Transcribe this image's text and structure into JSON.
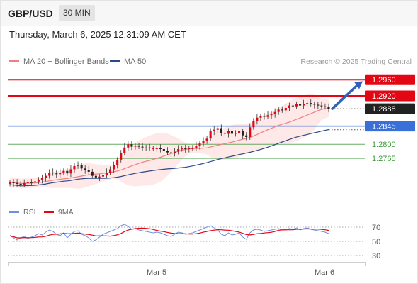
{
  "header": {
    "symbol": "GBP/USD",
    "interval": "30 MIN",
    "datetime": "Thursday, March 6, 2025 12:31:09 AM CET"
  },
  "legend": {
    "ma20": "MA 20 + Bollinger Bands",
    "ma50": "MA 50",
    "credit": "Research © 2025 Trading Central",
    "rsi": "RSI",
    "ma9": "9MA"
  },
  "colors": {
    "bull": "#e30613",
    "bear": "#222222",
    "ma20": "#f08080",
    "ma50": "#2c4a8a",
    "band": "#fde0e0",
    "resistance": "#e30613",
    "pivot": "#3a6fd8",
    "support": "#3f9a3f",
    "rsi": "#6f8fe0",
    "rsi_ma": "#e30613",
    "arrow": "#2e63b8"
  },
  "chart_data": [
    {
      "type": "candlestick",
      "ylim": [
        1.2665,
        1.2985
      ],
      "x_ticks": [
        "Mar 5",
        "Mar 6"
      ],
      "levels": [
        {
          "value": 1.296,
          "label": "1.2960",
          "kind": "resistance"
        },
        {
          "value": 1.292,
          "label": "1.2920",
          "kind": "resistance"
        },
        {
          "value": 1.2888,
          "label": "1.2888",
          "kind": "last"
        },
        {
          "value": 1.2845,
          "label": "1.2845",
          "kind": "pivot"
        },
        {
          "value": 1.28,
          "label": "1.2800",
          "kind": "support"
        },
        {
          "value": 1.2765,
          "label": "1.2765",
          "kind": "support"
        }
      ],
      "closes": [
        1.2706,
        1.2704,
        1.2702,
        1.27,
        1.2704,
        1.2706,
        1.2705,
        1.2708,
        1.2712,
        1.2716,
        1.2722,
        1.273,
        1.2728,
        1.2726,
        1.273,
        1.2734,
        1.2728,
        1.2738,
        1.2746,
        1.2748,
        1.274,
        1.2736,
        1.2732,
        1.2722,
        1.2718,
        1.272,
        1.2724,
        1.273,
        1.2738,
        1.2748,
        1.2762,
        1.2778,
        1.2792,
        1.28,
        1.2794,
        1.2796,
        1.2794,
        1.2792,
        1.2792,
        1.279,
        1.279,
        1.279,
        1.2788,
        1.2784,
        1.278,
        1.2778,
        1.2782,
        1.2788,
        1.279,
        1.2788,
        1.279,
        1.279,
        1.2796,
        1.2802,
        1.2808,
        1.2814,
        1.2832,
        1.2836,
        1.284,
        1.2828,
        1.2826,
        1.2832,
        1.2826,
        1.2828,
        1.2832,
        1.2822,
        1.2818,
        1.2842,
        1.2858,
        1.2866,
        1.287,
        1.2868,
        1.2872,
        1.2874,
        1.288,
        1.2886,
        1.2884,
        1.289,
        1.2896,
        1.2894,
        1.29,
        1.2896,
        1.29,
        1.2902,
        1.29,
        1.2898,
        1.2896,
        1.2894,
        1.2892,
        1.2888
      ]
    },
    {
      "type": "line",
      "name": "RSI",
      "ylim": [
        25,
        80
      ],
      "y_ticks": [
        70,
        50,
        30
      ],
      "values": [
        58,
        55,
        52,
        55,
        57,
        54,
        56,
        58,
        61,
        59,
        63,
        66,
        64,
        60,
        58,
        62,
        55,
        60,
        64,
        65,
        60,
        58,
        55,
        50,
        52,
        56,
        60,
        62,
        64,
        66,
        68,
        72,
        74,
        71,
        67,
        68,
        66,
        65,
        64,
        63,
        62,
        63,
        62,
        60,
        58,
        57,
        60,
        63,
        62,
        60,
        61,
        62,
        64,
        66,
        68,
        70,
        72,
        69,
        66,
        60,
        58,
        62,
        59,
        60,
        62,
        56,
        53,
        62,
        66,
        67,
        66,
        64,
        65,
        66,
        67,
        68,
        66,
        67,
        68,
        67,
        69,
        66,
        68,
        69,
        67,
        66,
        65,
        64,
        63,
        61
      ]
    }
  ]
}
